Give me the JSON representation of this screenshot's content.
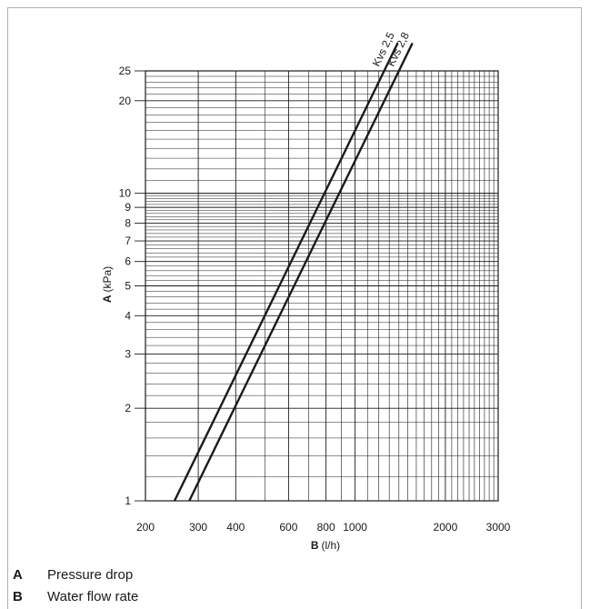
{
  "chart_data": {
    "type": "line",
    "xlabel_letter": "B",
    "xlabel_unit": "(l/h)",
    "ylabel_letter": "A",
    "ylabel_unit": "(kPa)",
    "x_scale": "log",
    "y_scale": "log",
    "xlim": [
      200,
      3000
    ],
    "ylim": [
      1,
      25
    ],
    "x_ticks": [
      200,
      300,
      400,
      600,
      800,
      1000,
      2000,
      3000
    ],
    "x_tick_labels": [
      "200",
      "300",
      "400",
      "600",
      "800",
      "1000",
      "2000",
      "3000"
    ],
    "y_ticks": [
      1,
      2,
      3,
      4,
      5,
      6,
      7,
      8,
      9,
      10,
      20,
      25
    ],
    "y_tick_labels": [
      "1",
      "2",
      "3",
      "4",
      "5",
      "6",
      "7",
      "8",
      "9",
      "10",
      "20",
      "25"
    ],
    "grid": true,
    "series": [
      {
        "name": "Kvs 2,5",
        "x": [
          250,
          1250
        ],
        "y": [
          1,
          25
        ]
      },
      {
        "name": "Kvs 2,8",
        "x": [
          280,
          1400
        ],
        "y": [
          1,
          25
        ]
      }
    ]
  },
  "legend": [
    {
      "key": "A",
      "text": "Pressure drop"
    },
    {
      "key": "B",
      "text": "Water flow rate"
    }
  ]
}
